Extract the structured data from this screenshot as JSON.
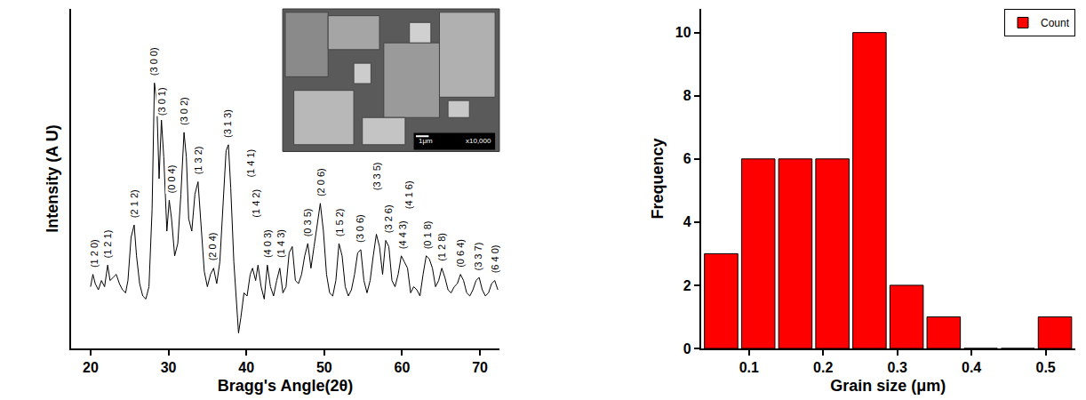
{
  "chart_data": [
    {
      "type": "line",
      "x_label": "Bragg's Angle(2θ)",
      "y_label": "Intensity (A U)",
      "x": [
        20.0,
        20.3,
        20.6,
        21.0,
        21.4,
        21.8,
        22.2,
        22.5,
        22.9,
        23.3,
        23.7,
        24.1,
        24.5,
        24.8,
        25.2,
        25.6,
        25.9,
        26.3,
        26.7,
        27.1,
        27.5,
        27.9,
        28.2,
        28.5,
        28.8,
        29.1,
        29.4,
        29.8,
        30.1,
        30.4,
        30.8,
        31.2,
        31.6,
        32.0,
        32.3,
        32.6,
        33.0,
        33.4,
        33.8,
        34.2,
        34.6,
        35.0,
        35.4,
        35.8,
        36.2,
        36.6,
        37.0,
        37.4,
        37.7,
        38.0,
        38.4,
        38.8,
        39.0,
        39.3,
        39.7,
        40.1,
        40.5,
        40.8,
        41.2,
        41.5,
        41.9,
        42.3,
        42.7,
        43.1,
        43.5,
        43.9,
        44.3,
        44.7,
        45.1,
        45.5,
        45.9,
        46.3,
        46.7,
        47.1,
        47.5,
        47.9,
        48.3,
        48.7,
        49.1,
        49.5,
        49.9,
        50.3,
        50.7,
        51.1,
        51.5,
        51.9,
        52.3,
        52.7,
        53.1,
        53.5,
        53.9,
        54.3,
        54.7,
        55.1,
        55.5,
        55.9,
        56.3,
        56.7,
        57.1,
        57.5,
        57.9,
        58.3,
        58.7,
        59.1,
        59.5,
        59.9,
        60.3,
        60.7,
        61.1,
        61.5,
        61.9,
        62.3,
        62.7,
        63.1,
        63.5,
        63.9,
        64.3,
        64.7,
        65.1,
        65.5,
        65.9,
        66.3,
        66.7,
        67.1,
        67.5,
        67.9,
        68.3,
        68.7,
        69.1,
        69.5,
        69.9,
        70.3,
        70.7,
        71.1,
        71.5,
        71.9,
        72.3
      ],
      "values": [
        20,
        24,
        21,
        19,
        22,
        20,
        27,
        22,
        23,
        24,
        21,
        19,
        18,
        22,
        36,
        40,
        30,
        21,
        17,
        16,
        20,
        45,
        86,
        80,
        55,
        74,
        62,
        38,
        48,
        42,
        30,
        34,
        50,
        70,
        62,
        42,
        38,
        50,
        54,
        38,
        25,
        20,
        24,
        26,
        21,
        28,
        46,
        64,
        66,
        52,
        28,
        12,
        5,
        10,
        18,
        17,
        24,
        26,
        22,
        27,
        20,
        16,
        27,
        20,
        17,
        22,
        26,
        18,
        20,
        31,
        33,
        22,
        21,
        24,
        30,
        34,
        26,
        33,
        40,
        47,
        38,
        24,
        18,
        17,
        22,
        34,
        30,
        20,
        17,
        19,
        24,
        31,
        32,
        22,
        18,
        22,
        30,
        37,
        33,
        24,
        35,
        33,
        22,
        20,
        24,
        30,
        28,
        26,
        18,
        20,
        19,
        17,
        24,
        30,
        29,
        26,
        20,
        22,
        26,
        23,
        19,
        18,
        20,
        21,
        24,
        22,
        18,
        17,
        19,
        22,
        23,
        19,
        17,
        18,
        21,
        22,
        19
      ],
      "color": "#000000",
      "xlim": [
        17.5,
        72.5
      ],
      "xticks": [
        20,
        30,
        40,
        50,
        60,
        70
      ],
      "ylim": [
        0,
        110
      ],
      "tick_labels": "x",
      "grid": false,
      "annotations": [
        {
          "text": "(1 2 0)",
          "x": 20.4,
          "y": 26
        },
        {
          "text": "(1 2 1)",
          "x": 22.2,
          "y": 29
        },
        {
          "text": "(2 1 2)",
          "x": 25.6,
          "y": 42
        },
        {
          "text": "(3 0 0)",
          "x": 28.2,
          "y": 88
        },
        {
          "text": "(3 0 1)",
          "x": 29.1,
          "y": 75
        },
        {
          "text": "(0 0 4)",
          "x": 30.4,
          "y": 50
        },
        {
          "text": "(3 0 2)",
          "x": 32.0,
          "y": 72
        },
        {
          "text": "(1 3 2)",
          "x": 33.8,
          "y": 56
        },
        {
          "text": "(2 0 4)",
          "x": 35.6,
          "y": 28
        },
        {
          "text": "(3 1 3)",
          "x": 37.6,
          "y": 68
        },
        {
          "text": "(1 4 1)",
          "x": 40.5,
          "y": 55
        },
        {
          "text": "(1 4 2)",
          "x": 41.3,
          "y": 42
        },
        {
          "text": "(4 0 3)",
          "x": 42.7,
          "y": 29
        },
        {
          "text": "(1 4 3)",
          "x": 44.5,
          "y": 29
        },
        {
          "text": "(0 3 5)",
          "x": 47.9,
          "y": 36
        },
        {
          "text": "(2 0 6)",
          "x": 49.6,
          "y": 49
        },
        {
          "text": "(1 5 2)",
          "x": 52.0,
          "y": 36
        },
        {
          "text": "(3 0 6)",
          "x": 54.6,
          "y": 34
        },
        {
          "text": "(3 3 5)",
          "x": 56.8,
          "y": 51
        },
        {
          "text": "(3 2 6)",
          "x": 58.2,
          "y": 37
        },
        {
          "text": "(4 4 3)",
          "x": 60.1,
          "y": 32
        },
        {
          "text": "(4 1 6)",
          "x": 60.8,
          "y": 45
        },
        {
          "text": "(0 1 8)",
          "x": 63.2,
          "y": 32
        },
        {
          "text": "(1 2 8)",
          "x": 65.1,
          "y": 28
        },
        {
          "text": "(0 6 4)",
          "x": 67.5,
          "y": 26
        },
        {
          "text": "(3 3 7)",
          "x": 69.8,
          "y": 25
        },
        {
          "text": "(6 4 0)",
          "x": 71.9,
          "y": 24
        }
      ],
      "inset_texts": [
        "1μm",
        "x10,000"
      ]
    },
    {
      "type": "histogram",
      "x_label": "Grain size (μm)",
      "y_label": "Frequency",
      "name": "Count",
      "bins": [
        0.0375,
        0.0875,
        0.1375,
        0.1875,
        0.2375,
        0.2875,
        0.3375,
        0.3875,
        0.4375,
        0.4875,
        0.5375
      ],
      "values": [
        3,
        6,
        6,
        6,
        10,
        2,
        1,
        0,
        0,
        1
      ],
      "color": "#ff0000",
      "xlim": [
        0.035,
        0.54
      ],
      "xticks": [
        0.1,
        0.2,
        0.3,
        0.4,
        0.5
      ],
      "ylim": [
        0,
        10.75
      ],
      "yticks": [
        0,
        2,
        4,
        6,
        8,
        10
      ],
      "grid": false,
      "legend": "upper right"
    }
  ]
}
